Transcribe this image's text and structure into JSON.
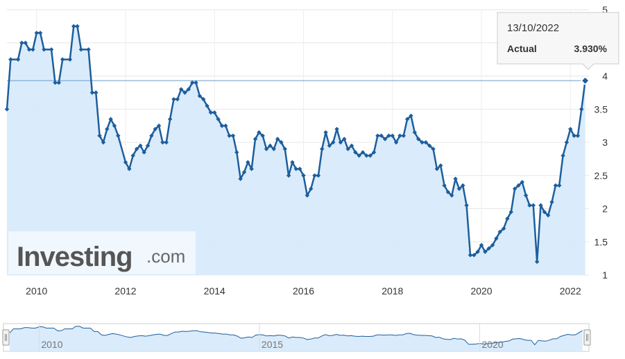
{
  "chart_data": {
    "type": "line",
    "series": [
      {
        "values": [
          [
            "2009-05",
            3.5
          ],
          [
            "2009-06",
            4.25
          ],
          [
            "2009-08",
            4.25
          ],
          [
            "2009-09",
            4.5
          ],
          [
            "2009-10",
            4.5
          ],
          [
            "2009-11",
            4.4
          ],
          [
            "2009-12",
            4.4
          ],
          [
            "2010-01",
            4.65
          ],
          [
            "2010-02",
            4.65
          ],
          [
            "2010-03",
            4.4
          ],
          [
            "2010-05",
            4.4
          ],
          [
            "2010-06",
            3.9
          ],
          [
            "2010-07",
            3.9
          ],
          [
            "2010-08",
            4.25
          ],
          [
            "2010-10",
            4.25
          ],
          [
            "2010-11",
            4.75
          ],
          [
            "2010-12",
            4.75
          ],
          [
            "2011-01",
            4.4
          ],
          [
            "2011-03",
            4.4
          ],
          [
            "2011-04",
            3.75
          ],
          [
            "2011-05",
            3.75
          ],
          [
            "2011-06",
            3.1
          ],
          [
            "2011-07",
            3.0
          ],
          [
            "2011-08",
            3.2
          ],
          [
            "2011-09",
            3.35
          ],
          [
            "2011-10",
            3.25
          ],
          [
            "2011-11",
            3.1
          ],
          [
            "2012-01",
            2.7
          ],
          [
            "2012-02",
            2.6
          ],
          [
            "2012-03",
            2.8
          ],
          [
            "2012-04",
            2.9
          ],
          [
            "2012-05",
            2.95
          ],
          [
            "2012-06",
            2.85
          ],
          [
            "2012-07",
            2.95
          ],
          [
            "2012-08",
            3.1
          ],
          [
            "2012-09",
            3.2
          ],
          [
            "2012-10",
            3.25
          ],
          [
            "2012-11",
            3.0
          ],
          [
            "2012-12",
            3.0
          ],
          [
            "2013-01",
            3.35
          ],
          [
            "2013-02",
            3.65
          ],
          [
            "2013-03",
            3.65
          ],
          [
            "2013-04",
            3.8
          ],
          [
            "2013-05",
            3.75
          ],
          [
            "2013-06",
            3.8
          ],
          [
            "2013-07",
            3.9
          ],
          [
            "2013-08",
            3.9
          ],
          [
            "2013-09",
            3.7
          ],
          [
            "2013-10",
            3.65
          ],
          [
            "2013-11",
            3.55
          ],
          [
            "2013-12",
            3.45
          ],
          [
            "2014-01",
            3.45
          ],
          [
            "2014-02",
            3.35
          ],
          [
            "2014-03",
            3.25
          ],
          [
            "2014-04",
            3.25
          ],
          [
            "2014-05",
            3.1
          ],
          [
            "2014-06",
            3.1
          ],
          [
            "2014-07",
            2.85
          ],
          [
            "2014-08",
            2.45
          ],
          [
            "2014-09",
            2.55
          ],
          [
            "2014-10",
            2.7
          ],
          [
            "2014-11",
            2.6
          ],
          [
            "2014-12",
            3.05
          ],
          [
            "2015-01",
            3.15
          ],
          [
            "2015-02",
            3.1
          ],
          [
            "2015-03",
            2.9
          ],
          [
            "2015-04",
            2.95
          ],
          [
            "2015-05",
            2.9
          ],
          [
            "2015-06",
            3.05
          ],
          [
            "2015-07",
            3.0
          ],
          [
            "2015-08",
            2.9
          ],
          [
            "2015-09",
            2.5
          ],
          [
            "2015-10",
            2.7
          ],
          [
            "2015-11",
            2.6
          ],
          [
            "2015-12",
            2.6
          ],
          [
            "2016-01",
            2.5
          ],
          [
            "2016-02",
            2.2
          ],
          [
            "2016-03",
            2.3
          ],
          [
            "2016-04",
            2.5
          ],
          [
            "2016-05",
            2.5
          ],
          [
            "2016-06",
            2.9
          ],
          [
            "2016-07",
            3.15
          ],
          [
            "2016-08",
            2.95
          ],
          [
            "2016-09",
            3.0
          ],
          [
            "2016-10",
            3.2
          ],
          [
            "2016-11",
            3.0
          ],
          [
            "2016-12",
            3.05
          ],
          [
            "2017-01",
            2.9
          ],
          [
            "2017-02",
            2.95
          ],
          [
            "2017-03",
            2.85
          ],
          [
            "2017-04",
            2.8
          ],
          [
            "2017-05",
            2.85
          ],
          [
            "2017-06",
            2.8
          ],
          [
            "2017-07",
            2.8
          ],
          [
            "2017-08",
            2.85
          ],
          [
            "2017-09",
            3.1
          ],
          [
            "2017-10",
            3.1
          ],
          [
            "2017-11",
            3.05
          ],
          [
            "2017-12",
            3.1
          ],
          [
            "2018-01",
            3.1
          ],
          [
            "2018-02",
            3.0
          ],
          [
            "2018-03",
            3.1
          ],
          [
            "2018-04",
            3.1
          ],
          [
            "2018-05",
            3.35
          ],
          [
            "2018-06",
            3.4
          ],
          [
            "2018-07",
            3.15
          ],
          [
            "2018-08",
            3.05
          ],
          [
            "2018-09",
            3.0
          ],
          [
            "2018-10",
            3.0
          ],
          [
            "2018-11",
            2.95
          ],
          [
            "2018-12",
            2.9
          ],
          [
            "2019-01",
            2.6
          ],
          [
            "2019-02",
            2.65
          ],
          [
            "2019-03",
            2.35
          ],
          [
            "2019-04",
            2.25
          ],
          [
            "2019-05",
            2.2
          ],
          [
            "2019-06",
            2.45
          ],
          [
            "2019-07",
            2.3
          ],
          [
            "2019-08",
            2.35
          ],
          [
            "2019-09",
            2.05
          ],
          [
            "2019-10",
            1.3
          ],
          [
            "2019-11",
            1.3
          ],
          [
            "2019-12",
            1.35
          ],
          [
            "2020-01",
            1.45
          ],
          [
            "2020-02",
            1.35
          ],
          [
            "2020-03",
            1.4
          ],
          [
            "2020-04",
            1.45
          ],
          [
            "2020-05",
            1.55
          ],
          [
            "2020-06",
            1.65
          ],
          [
            "2020-07",
            1.7
          ],
          [
            "2020-08",
            1.85
          ],
          [
            "2020-09",
            1.95
          ],
          [
            "2020-10",
            2.3
          ],
          [
            "2020-11",
            2.35
          ],
          [
            "2020-12",
            2.4
          ],
          [
            "2021-01",
            2.2
          ],
          [
            "2021-02",
            2.05
          ],
          [
            "2021-03",
            2.05
          ],
          [
            "2021-04",
            1.2
          ],
          [
            "2021-05",
            2.05
          ],
          [
            "2021-06",
            1.95
          ],
          [
            "2021-07",
            1.9
          ],
          [
            "2021-08",
            2.1
          ],
          [
            "2021-09",
            2.35
          ],
          [
            "2021-10",
            2.35
          ],
          [
            "2021-11",
            2.8
          ],
          [
            "2021-12",
            3.0
          ],
          [
            "2022-01",
            3.2
          ],
          [
            "2022-02",
            3.1
          ],
          [
            "2022-03",
            3.1
          ],
          [
            "2022-04",
            3.5
          ],
          [
            "2022-05",
            3.93
          ]
        ]
      }
    ],
    "x_ticks": [
      "2010",
      "2012",
      "2014",
      "2016",
      "2018",
      "2020",
      "2022"
    ],
    "y_ticks": [
      "1",
      "1.5",
      "2",
      "2.5",
      "3",
      "3.5",
      "4",
      "4.5",
      "5"
    ],
    "ylim": [
      1,
      5
    ],
    "xlim": [
      "2009-05",
      "2022-06"
    ],
    "grid": true,
    "reference_line": 3.93,
    "navigator_labels": [
      "2010",
      "2015",
      "2020"
    ],
    "colors": {
      "line": "#1d5e9c",
      "fill": "#d6e9fb",
      "reference": "#6a9bc9"
    }
  },
  "tooltip": {
    "date": "13/10/2022",
    "label": "Actual",
    "value": "3.930%"
  },
  "watermark": {
    "brand": "Investing",
    "suffix": ".com"
  }
}
